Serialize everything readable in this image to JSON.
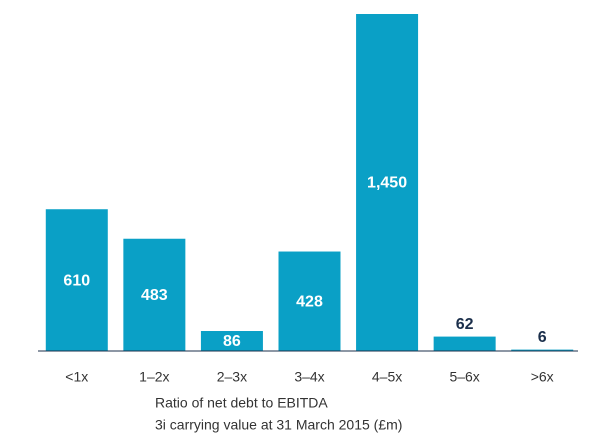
{
  "chart_data": {
    "type": "bar",
    "categories": [
      "<1x",
      "1–2x",
      "2–3x",
      "3–4x",
      "4–5x",
      "5–6x",
      ">6x"
    ],
    "values": [
      610,
      483,
      86,
      428,
      1450,
      62,
      6
    ],
    "value_labels": [
      "610",
      "483",
      "86",
      "428",
      "1,450",
      "62",
      "6"
    ],
    "color": "#0aa0c6",
    "ylim": [
      0,
      1450
    ],
    "x_label": "Ratio of net debt to EBITDA",
    "y_label": "3i carrying value at 31 March 2015 (£m)"
  }
}
